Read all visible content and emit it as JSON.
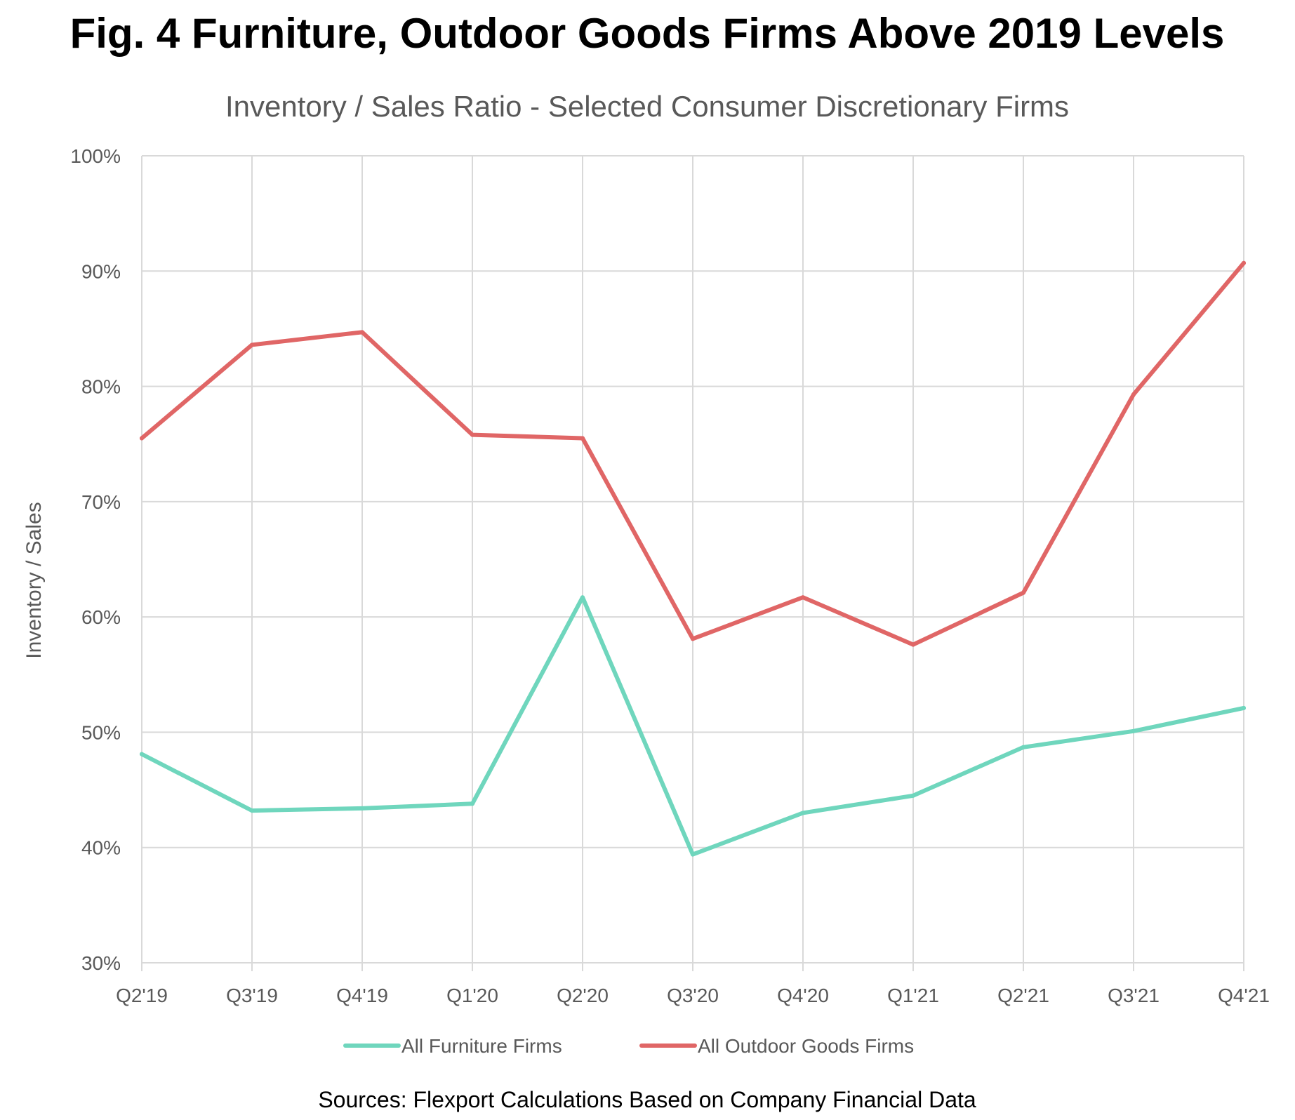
{
  "chart_data": {
    "type": "line",
    "title": "Fig. 4 Furniture, Outdoor Goods Firms Above 2019 Levels",
    "subtitle": "Inventory / Sales Ratio - Selected Consumer Discretionary Firms",
    "xlabel": "",
    "ylabel": "Inventory / Sales",
    "categories": [
      "Q2'19",
      "Q3'19",
      "Q4'19",
      "Q1'20",
      "Q2'20",
      "Q3'20",
      "Q4'20",
      "Q1'21",
      "Q2'21",
      "Q3'21",
      "Q4'21"
    ],
    "ylim": [
      30,
      100
    ],
    "yticks": [
      30,
      40,
      50,
      60,
      70,
      80,
      90,
      100
    ],
    "ytick_labels": [
      "30%",
      "40%",
      "50%",
      "60%",
      "70%",
      "80%",
      "90%",
      "100%"
    ],
    "grid": true,
    "legend_position": "bottom",
    "series": [
      {
        "name": "All Furniture Firms",
        "color": "#6fd6bd",
        "values": [
          48.1,
          43.2,
          43.4,
          43.8,
          61.7,
          39.4,
          43.0,
          44.5,
          48.7,
          50.1,
          52.1
        ]
      },
      {
        "name": "All Outdoor Goods Firms",
        "color": "#e06666",
        "values": [
          75.5,
          83.6,
          84.7,
          75.8,
          75.5,
          58.1,
          61.7,
          57.6,
          62.1,
          79.3,
          90.7
        ]
      }
    ],
    "source": "Sources: Flexport Calculations Based on Company Financial Data"
  }
}
